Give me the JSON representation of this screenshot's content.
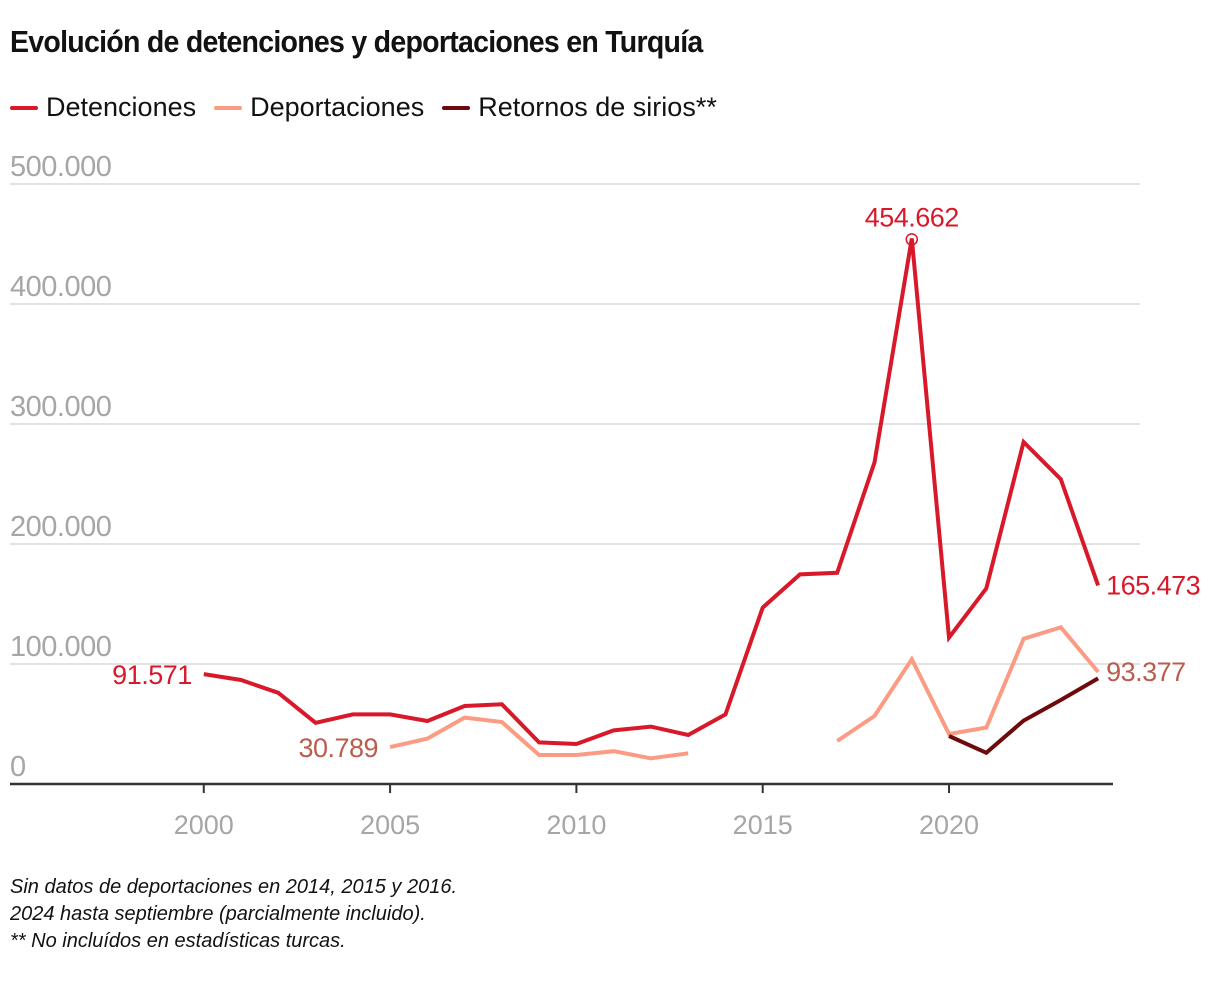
{
  "chart_data": {
    "type": "line",
    "title": "Evolución de detenciones y deportaciones en Turquía",
    "xlabel": "",
    "ylabel": "",
    "xlim": [
      1994.8,
      2024.4
    ],
    "ylim": [
      0,
      500000
    ],
    "grid": true,
    "legend_position": "top-left",
    "x_ticks": [
      2000,
      2005,
      2010,
      2015,
      2020
    ],
    "x_tick_labels": [
      "2000",
      "2005",
      "2010",
      "2015",
      "2020"
    ],
    "y_ticks": [
      0,
      100000,
      200000,
      300000,
      400000,
      500000
    ],
    "y_tick_labels": [
      "0",
      "100.000",
      "200.000",
      "300.000",
      "400.000",
      "500.000"
    ],
    "series": [
      {
        "name": "Detenciones",
        "color": "#d7192a",
        "label_color": "#d7192a",
        "points": [
          [
            2000,
            91571
          ],
          [
            2001,
            86700
          ],
          [
            2002,
            76000
          ],
          [
            2003,
            51000
          ],
          [
            2004,
            58000
          ],
          [
            2005,
            58000
          ],
          [
            2006,
            52500
          ],
          [
            2007,
            65000
          ],
          [
            2008,
            66400
          ],
          [
            2009,
            34700
          ],
          [
            2010,
            33300
          ],
          [
            2011,
            44700
          ],
          [
            2012,
            47800
          ],
          [
            2013,
            40800
          ],
          [
            2014,
            58000
          ],
          [
            2015,
            147000
          ],
          [
            2016,
            174700
          ],
          [
            2017,
            176000
          ],
          [
            2018,
            268000
          ],
          [
            2019,
            454662
          ],
          [
            2020,
            122000
          ],
          [
            2021,
            163000
          ],
          [
            2022,
            285000
          ],
          [
            2023,
            254000
          ],
          [
            2024,
            165473
          ]
        ],
        "annotations": [
          {
            "x": 2000,
            "text": "91.571",
            "position": "left"
          },
          {
            "x": 2019,
            "text": "454.662",
            "position": "top",
            "marker": "circle"
          },
          {
            "x": 2024,
            "text": "165.473",
            "position": "right"
          }
        ]
      },
      {
        "name": "Deportaciones",
        "color": "#fc9b83",
        "label_color": "#b95d4c",
        "segments": [
          [
            [
              2005,
              30789
            ],
            [
              2006,
              37800
            ],
            [
              2007,
              55300
            ],
            [
              2008,
              51700
            ],
            [
              2009,
              24200
            ],
            [
              2010,
              24200
            ],
            [
              2011,
              27300
            ],
            [
              2012,
              21400
            ],
            [
              2013,
              25600
            ]
          ],
          [
            [
              2017,
              35800
            ],
            [
              2018,
              56700
            ],
            [
              2019,
              104000
            ],
            [
              2020,
              41700
            ],
            [
              2021,
              47000
            ],
            [
              2022,
              121000
            ],
            [
              2023,
              130600
            ],
            [
              2024,
              93377
            ]
          ]
        ],
        "annotations": [
          {
            "x": 2005,
            "text": "30.789",
            "position": "left"
          },
          {
            "x": 2024,
            "text": "93.377",
            "position": "right"
          }
        ]
      },
      {
        "name": "Retornos de sirios**",
        "color": "#6e0a0c",
        "label_color": "#6e0a0c",
        "points": [
          [
            2020,
            40000
          ],
          [
            2021,
            26000
          ],
          [
            2022,
            52800
          ],
          [
            2023,
            70000
          ],
          [
            2024,
            88000
          ]
        ],
        "annotations": []
      }
    ],
    "notes": [
      "Sin datos de deportaciones en 2014, 2015 y 2016.",
      "2024 hasta septiembre (parcialmente incluido).",
      "** No incluídos en estadísticas turcas."
    ]
  }
}
